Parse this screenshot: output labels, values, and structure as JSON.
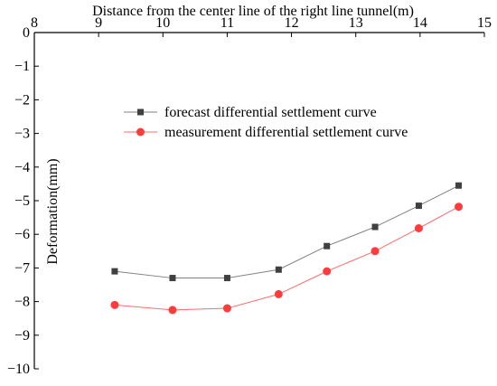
{
  "chart_data": {
    "type": "line",
    "title": "",
    "xlabel": "Distance from the center line of the right line tunnel(m)",
    "ylabel": "Deformation(mm)",
    "xlim": [
      8,
      15
    ],
    "ylim": [
      -10,
      0
    ],
    "x_ticks": [
      "8",
      "9",
      "10",
      "11",
      "12",
      "13",
      "14",
      "15"
    ],
    "y_ticks": [
      "0",
      "−1",
      "−2",
      "−3",
      "−4",
      "−5",
      "−6",
      "−7",
      "−8",
      "−9",
      "−10"
    ],
    "x_axis_position": "top",
    "grid": false,
    "legend_position": "upper-center",
    "series": [
      {
        "name": "forecast differential settlement curve",
        "marker": "square",
        "color": "#404040",
        "line_color": "#808080",
        "x": [
          9.25,
          10.15,
          11.0,
          11.8,
          12.55,
          13.3,
          13.98,
          14.6
        ],
        "y": [
          -7.1,
          -7.3,
          -7.3,
          -7.05,
          -6.35,
          -5.78,
          -5.15,
          -4.55
        ]
      },
      {
        "name": "measurement differential settlement curve",
        "marker": "circle",
        "color": "#ff3b3b",
        "line_color": "#ff6b6b",
        "x": [
          9.25,
          10.15,
          11.0,
          11.8,
          12.55,
          13.3,
          13.98,
          14.6
        ],
        "y": [
          -8.1,
          -8.25,
          -8.2,
          -7.78,
          -7.1,
          -6.5,
          -5.82,
          -5.18
        ]
      }
    ]
  }
}
